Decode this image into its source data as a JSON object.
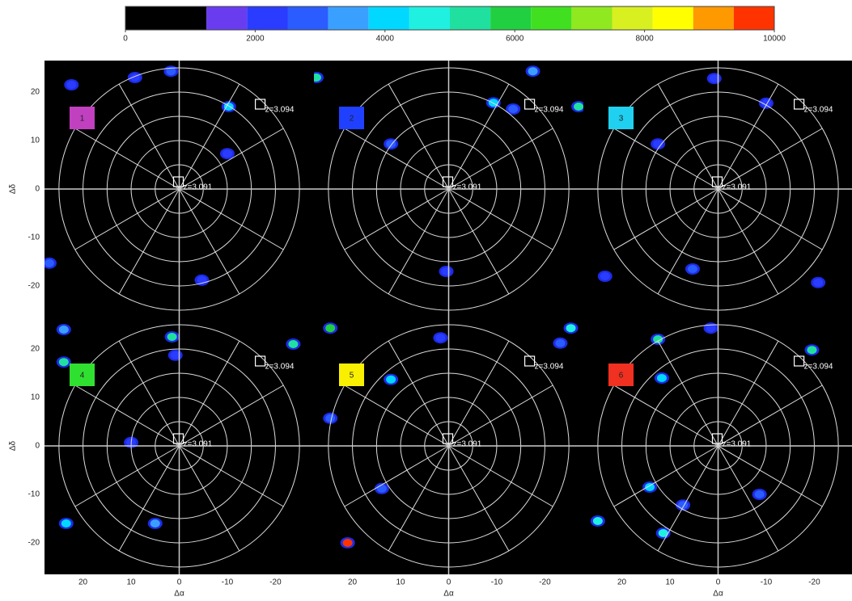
{
  "chart_data": {
    "type": "sky-map",
    "xlabel": "Δα",
    "ylabel": "Δδ",
    "xlim": [
      28,
      -28
    ],
    "ylim": [
      -26.5,
      26.5
    ],
    "xticks": [
      20,
      10,
      0,
      -10,
      -20
    ],
    "yticks": [
      20,
      10,
      0,
      -10,
      -20
    ],
    "rings": [
      5,
      10,
      15,
      20,
      25
    ],
    "spokes": 12,
    "colorbar": {
      "bounds": [
        0,
        1250,
        1875,
        2500,
        3125,
        3750,
        4375,
        5000,
        5625,
        6250,
        6875,
        7500,
        8125,
        8750,
        9375,
        10000
      ],
      "colors": [
        "#000000",
        "#6a3cf0",
        "#2a3cff",
        "#2a5cff",
        "#3aa0ff",
        "#00d8ff",
        "#20f0e0",
        "#20e0a0",
        "#20d040",
        "#40e020",
        "#90e820",
        "#d8f020",
        "#ffff00",
        "#ff9900",
        "#ff3300"
      ],
      "ticks": [
        0,
        2000,
        4000,
        6000,
        8000,
        10000
      ]
    },
    "markers": [
      {
        "text": "z=3.091",
        "x": 0,
        "y": 0
      },
      {
        "text": "z=3.094",
        "x": -17,
        "y": 16
      }
    ],
    "panels": [
      {
        "label": "1",
        "color": "#c040c0",
        "blobs": [
          {
            "x": -10.3,
            "y": 17,
            "v": 4000
          },
          {
            "x": 1.7,
            "y": 24.3,
            "v": 2500
          },
          {
            "x": -4.7,
            "y": -18.8,
            "v": 2200
          },
          {
            "x": 27,
            "y": -15.3,
            "v": 3000
          },
          {
            "x": -10,
            "y": 7.3,
            "v": 2200
          },
          {
            "x": 22.4,
            "y": 21.5,
            "v": 2000
          },
          {
            "x": 9.2,
            "y": 23,
            "v": 2000
          }
        ]
      },
      {
        "label": "2",
        "color": "#2040ff",
        "blobs": [
          {
            "x": -9.3,
            "y": 17.8,
            "v": 4000
          },
          {
            "x": -17.5,
            "y": 24.3,
            "v": 3500
          },
          {
            "x": 12,
            "y": 9.3,
            "v": 2500
          },
          {
            "x": -13.4,
            "y": 16.5,
            "v": 2500
          },
          {
            "x": -27,
            "y": 17,
            "v": 5000
          },
          {
            "x": 27.5,
            "y": 23,
            "v": 5000
          },
          {
            "x": 0.5,
            "y": -17,
            "v": 2200
          }
        ]
      },
      {
        "label": "3",
        "color": "#20d0f0",
        "blobs": [
          {
            "x": 12.5,
            "y": 9.3,
            "v": 2200
          },
          {
            "x": 0.8,
            "y": 22.8,
            "v": 2200
          },
          {
            "x": 5.3,
            "y": -16.5,
            "v": 2500
          },
          {
            "x": 23.5,
            "y": -18,
            "v": 2200
          },
          {
            "x": -20.8,
            "y": -19.3,
            "v": 2200
          },
          {
            "x": -10,
            "y": 17.7,
            "v": 2000
          }
        ]
      },
      {
        "label": "4",
        "color": "#30e030",
        "blobs": [
          {
            "x": 1.5,
            "y": 22.5,
            "v": 5000
          },
          {
            "x": 24,
            "y": 24,
            "v": 3500
          },
          {
            "x": 24,
            "y": 17.3,
            "v": 5000
          },
          {
            "x": 23.5,
            "y": -16,
            "v": 4000
          },
          {
            "x": 5,
            "y": -16,
            "v": 3500
          },
          {
            "x": -23.7,
            "y": 21,
            "v": 5000
          },
          {
            "x": 10,
            "y": 0.7,
            "v": 2200
          },
          {
            "x": 0.8,
            "y": 18.7,
            "v": 2200
          }
        ]
      },
      {
        "label": "5",
        "color": "#f8f000",
        "blobs": [
          {
            "x": 24.6,
            "y": 24.3,
            "v": 6000
          },
          {
            "x": 21,
            "y": -20,
            "v": 9500
          },
          {
            "x": 12,
            "y": 13.7,
            "v": 4000
          },
          {
            "x": 13.9,
            "y": -8.8,
            "v": 2500
          },
          {
            "x": -25.4,
            "y": 24.3,
            "v": 4500
          },
          {
            "x": -23.2,
            "y": 21.2,
            "v": 2500
          },
          {
            "x": 1.7,
            "y": 22.3,
            "v": 2200
          },
          {
            "x": 24.6,
            "y": 5.7,
            "v": 2500
          }
        ]
      },
      {
        "label": "6",
        "color": "#f03020",
        "blobs": [
          {
            "x": 11.7,
            "y": 14,
            "v": 4000
          },
          {
            "x": 12.5,
            "y": 22,
            "v": 5000
          },
          {
            "x": 14.2,
            "y": -8.5,
            "v": 4000
          },
          {
            "x": 11.4,
            "y": -18,
            "v": 4500
          },
          {
            "x": 25,
            "y": -15.5,
            "v": 4500
          },
          {
            "x": -19.5,
            "y": 19.8,
            "v": 5000
          },
          {
            "x": -8.6,
            "y": -10,
            "v": 2500
          },
          {
            "x": 1.5,
            "y": 24.3,
            "v": 2200
          },
          {
            "x": 7.3,
            "y": -12.2,
            "v": 2500
          }
        ]
      }
    ]
  }
}
